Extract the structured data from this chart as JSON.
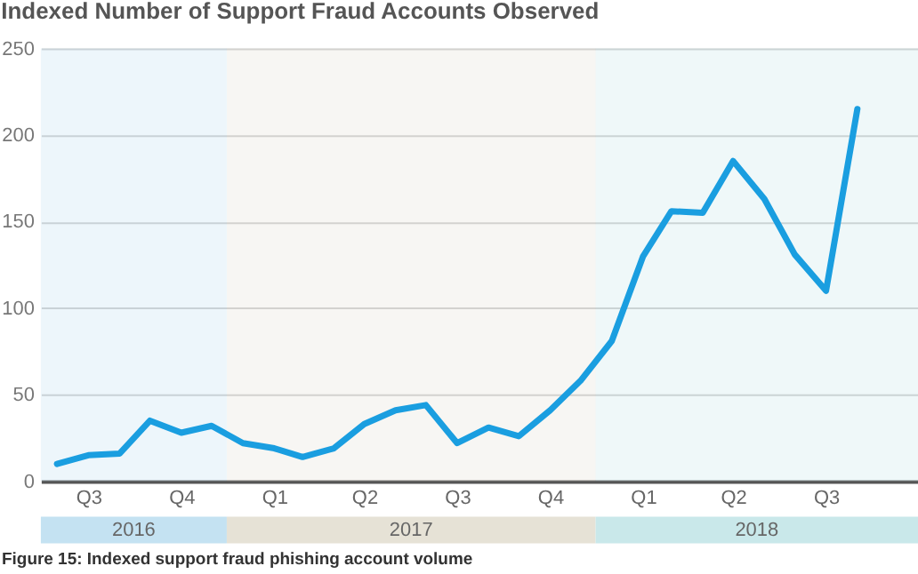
{
  "chart_data": {
    "type": "line",
    "title": "Indexed Number of Support Fraud Accounts Observed",
    "annotations": [
      "Figure 15: Indexed support fraud phishing account volume"
    ],
    "x": [
      "2016-07",
      "2016-08",
      "2016-09",
      "2016-10",
      "2016-11",
      "2016-12",
      "2017-01",
      "2017-02",
      "2017-03",
      "2017-04",
      "2017-05",
      "2017-06",
      "2017-07",
      "2017-08",
      "2017-09",
      "2017-10",
      "2017-11",
      "2017-12",
      "2018-01",
      "2018-02",
      "2018-03",
      "2018-04",
      "2018-05",
      "2018-06",
      "2018-07",
      "2018-08",
      "2018-09"
    ],
    "series": [
      {
        "color": "#1a9ee0",
        "values": [
          10,
          15,
          16,
          35,
          28,
          32,
          22,
          19,
          14,
          19,
          33,
          41,
          44,
          22,
          31,
          26,
          41,
          58,
          81,
          130,
          156,
          155,
          185,
          163,
          131,
          110,
          215
        ]
      }
    ],
    "xlim": [
      "2016-06-15",
      "2018-10-31"
    ],
    "xticks": [
      {
        "value": "2016-08",
        "label": "Q3"
      },
      {
        "value": "2016-11",
        "label": "Q4"
      },
      {
        "value": "2017-02",
        "label": "Q1"
      },
      {
        "value": "2017-05",
        "label": "Q2"
      },
      {
        "value": "2017-08",
        "label": "Q3"
      },
      {
        "value": "2017-11",
        "label": "Q4"
      },
      {
        "value": "2018-02",
        "label": "Q1"
      },
      {
        "value": "2018-05",
        "label": "Q2"
      },
      {
        "value": "2018-08",
        "label": "Q3"
      }
    ],
    "ylim": [
      0,
      250
    ],
    "yticks": [
      0,
      50,
      100,
      150,
      200,
      250
    ],
    "bands": [
      {
        "axis": "x",
        "from": "2016-06-15",
        "to": "2016-12-16",
        "label": "2016",
        "color": "#c4e2f2"
      },
      {
        "axis": "x",
        "from": "2016-12-16",
        "to": "2017-12-16",
        "label": "2017",
        "color": "#e6e2d6"
      },
      {
        "axis": "x",
        "from": "2017-12-16",
        "to": "2018-10-31",
        "label": "2018",
        "color": "#c9e8ea"
      }
    ],
    "grid": "y",
    "marker": "none",
    "line_style": "solid"
  }
}
